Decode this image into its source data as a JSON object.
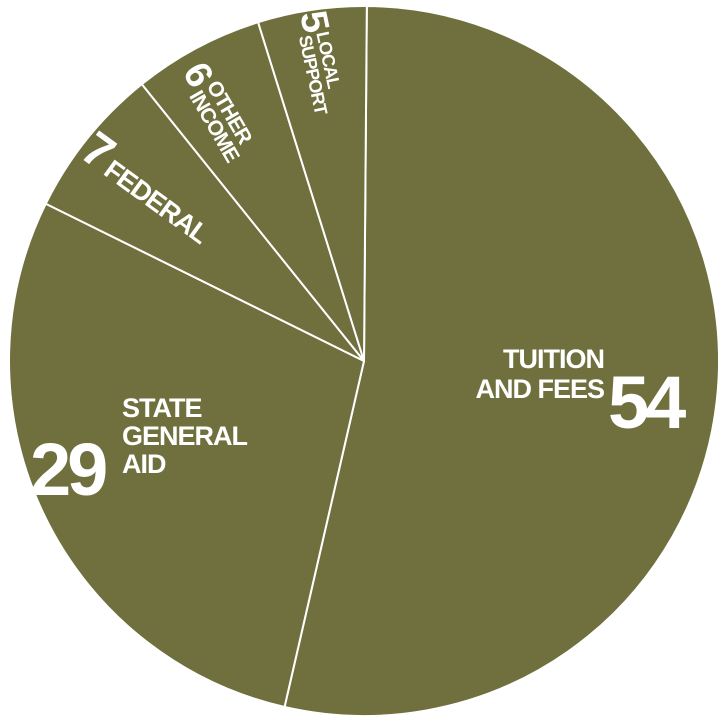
{
  "chart_data": {
    "type": "pie",
    "colors": {
      "slice_fill": "#70703e",
      "divider": "#ffffff",
      "label": "#ffffff"
    },
    "slices": [
      {
        "value": 54,
        "label_lines": [
          "TUITION",
          "AND FEES"
        ]
      },
      {
        "value": 29,
        "label_lines": [
          "STATE",
          "GENERAL",
          "AID"
        ]
      },
      {
        "value": 7,
        "label_lines": [
          "FEDERAL"
        ]
      },
      {
        "value": 6,
        "label_lines": [
          "OTHER",
          "INCOME"
        ]
      },
      {
        "value": 5,
        "label_lines": [
          "LOCAL",
          "SUPPORT"
        ]
      }
    ]
  }
}
